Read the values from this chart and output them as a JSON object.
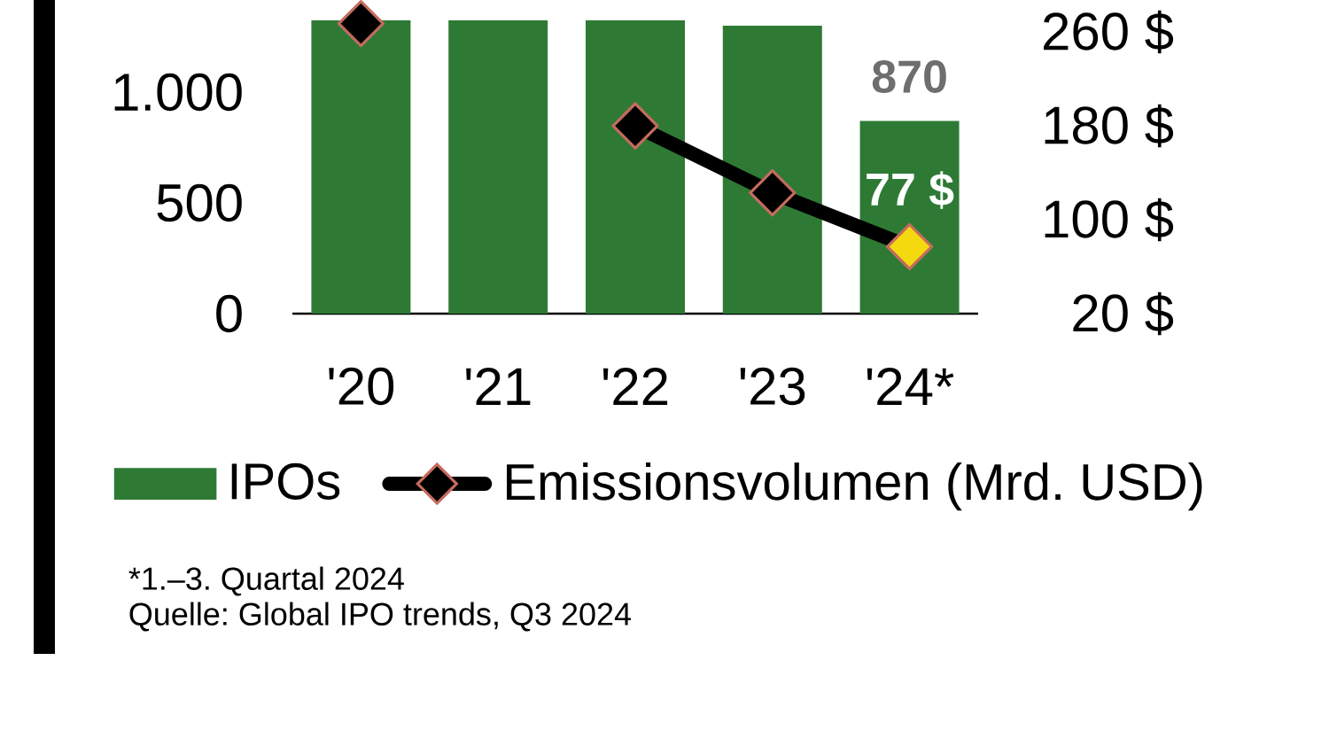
{
  "chart_data": {
    "type": "bar",
    "categories": [
      "'20",
      "'21",
      "'22",
      "'23",
      "'24*"
    ],
    "series": [
      {
        "name": "IPOs",
        "color": "#2e7a35",
        "values": [
          1325,
          1325,
          1325,
          1300,
          870
        ],
        "value_labels": [
          null,
          null,
          null,
          null,
          "870"
        ]
      },
      {
        "name": "Emissionsvolumen (Mrd. USD)",
        "type": "line",
        "axis": "y2",
        "color": "#000000",
        "marker": "diamond",
        "colors": [
          "#000000",
          "#000000",
          "#000000",
          "#000000",
          "#f5d90f"
        ],
        "values": [
          267,
          null,
          180,
          123,
          77
        ],
        "value_labels": [
          null,
          null,
          null,
          null,
          "77 $"
        ]
      }
    ],
    "ylim": [
      0,
      1325
    ],
    "yticks": [
      0,
      500,
      {
        "value": 1000,
        "label": "1.000"
      }
    ],
    "y2lim": [
      20,
      270
    ],
    "y2ticks": [
      {
        "value": 20,
        "label": "20 $"
      },
      {
        "value": 100,
        "label": "100 $"
      },
      {
        "value": 180,
        "label": "180 $"
      },
      {
        "value": 260,
        "label": "260 $"
      }
    ],
    "legend": "bottom",
    "annotations": [
      "*1.–3. Quartal 2024",
      "Quelle: Global IPO trends, Q3 2024"
    ]
  }
}
